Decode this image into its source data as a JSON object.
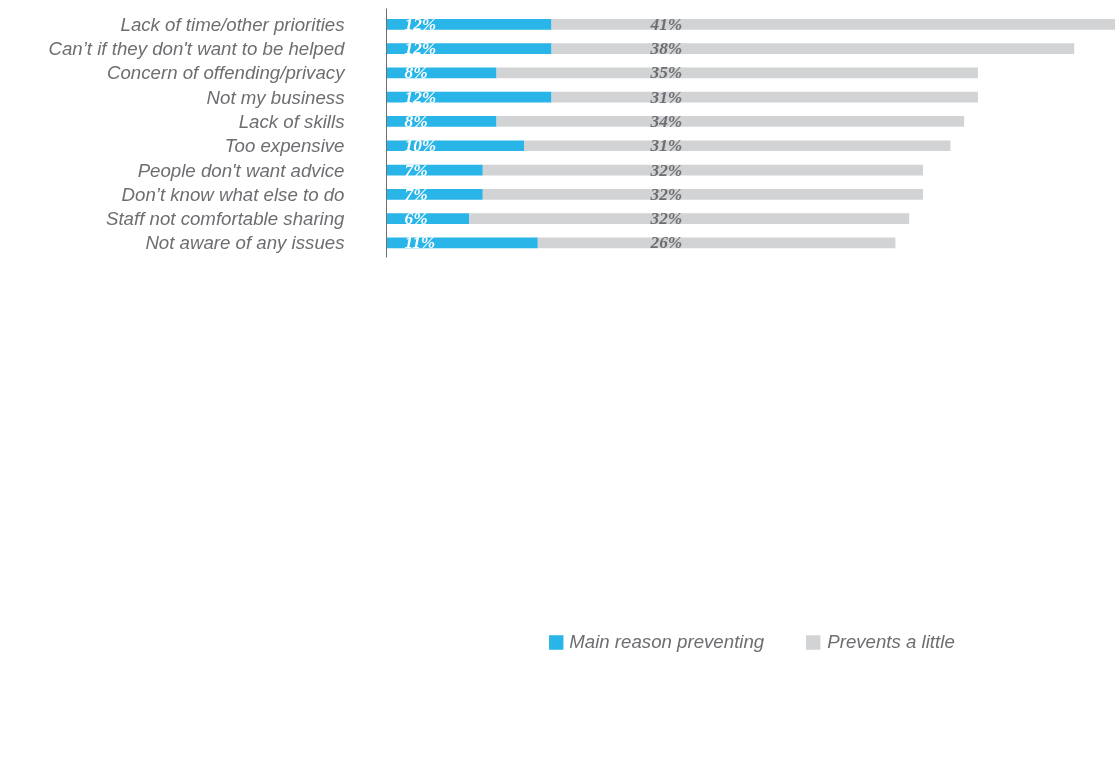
{
  "chart_data": {
    "type": "bar",
    "orientation": "horizontal",
    "stacked": true,
    "categories": [
      "Lack of time/other priorities",
      "Can’t if they don't want to be helped",
      "Concern of offending/privacy",
      "Not my business",
      "Lack of skills",
      "Too expensive",
      "People don't want advice",
      "Don’t know what else to do",
      "Staff not comfortable sharing",
      "Not aware of any issues"
    ],
    "series": [
      {
        "name": "Main reason preventing",
        "color": "#29b5e8",
        "values": [
          12,
          12,
          8,
          12,
          8,
          10,
          7,
          7,
          6,
          11
        ],
        "value_labels": [
          "12%",
          "12%",
          "8%",
          "12%",
          "8%",
          "10%",
          "7%",
          "7%",
          "6%",
          "11%"
        ]
      },
      {
        "name": "Prevents a little",
        "color": "#d1d3d4",
        "values": [
          41,
          38,
          35,
          31,
          34,
          31,
          32,
          32,
          32,
          26
        ],
        "value_labels": [
          "41%",
          "38%",
          "35%",
          "31%",
          "34%",
          "31%",
          "32%",
          "32%",
          "32%",
          "26%"
        ]
      }
    ],
    "legend": "bottom",
    "grid": false
  }
}
